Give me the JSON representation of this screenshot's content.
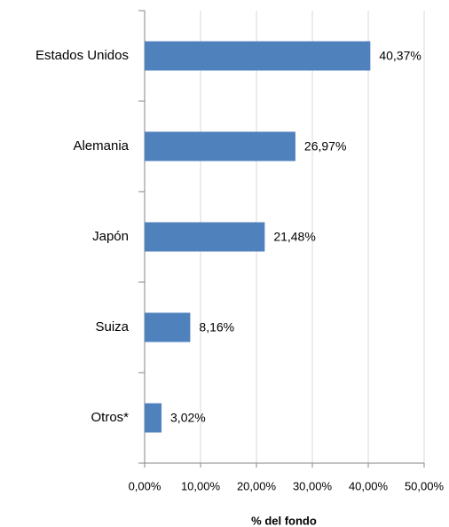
{
  "chart_data": {
    "type": "bar",
    "orientation": "horizontal",
    "categories": [
      "Estados Unidos",
      "Alemania",
      "Japón",
      "Suiza",
      "Otros*"
    ],
    "values": [
      40.37,
      26.97,
      21.48,
      8.16,
      3.02
    ],
    "value_labels": [
      "40,37%",
      "26,97%",
      "21,48%",
      "8,16%",
      "3,02%"
    ],
    "color": "#4f81bd",
    "xlabel": "% del fondo",
    "xlim": [
      0,
      50
    ],
    "xticks": [
      {
        "value": 0,
        "label": "0,00%"
      },
      {
        "value": 10,
        "label": "10,00%"
      },
      {
        "value": 20,
        "label": "20,00%"
      },
      {
        "value": 30,
        "label": "30,00%"
      },
      {
        "value": 40,
        "label": "40,00%"
      },
      {
        "value": 50,
        "label": "50,00%"
      }
    ],
    "grid": true
  }
}
